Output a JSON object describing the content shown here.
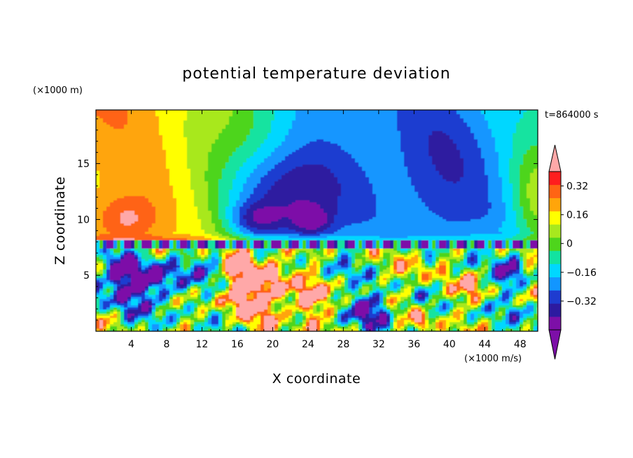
{
  "chart_data": {
    "type": "heatmap",
    "title": "potential temperature deviation",
    "xlabel": "X coordinate",
    "ylabel": "Z coordinate",
    "x_unit": "(×1000 m/s)",
    "y_unit": "(×1000 m)",
    "time_label": "t=864000 s",
    "xlim": [
      0,
      50
    ],
    "ylim": [
      0,
      19.8
    ],
    "x_ticks": [
      4,
      8,
      12,
      16,
      20,
      24,
      28,
      32,
      36,
      40,
      44,
      48
    ],
    "x_tick_labels": [
      "4",
      "8",
      "12",
      "16",
      "20",
      "24",
      "28",
      "32",
      "36",
      "40",
      "44",
      "48"
    ],
    "y_ticks": [
      5,
      10,
      15
    ],
    "y_tick_labels": [
      "5",
      "10",
      "15"
    ],
    "colorbar": {
      "levels": [
        -0.48,
        -0.4,
        -0.32,
        -0.24,
        -0.16,
        -0.08,
        0,
        0.08,
        0.16,
        0.24,
        0.32,
        0.4
      ],
      "tick_values": [
        0.32,
        0.16,
        0,
        -0.16,
        -0.32
      ],
      "tick_labels": [
        "0.32",
        "0.16",
        "0",
        "−0.16",
        "−0.32"
      ],
      "colors": [
        "#7d0fa8",
        "#2d1aa0",
        "#1e3cd0",
        "#1296ff",
        "#00d7ff",
        "#12e3a0",
        "#4ed51c",
        "#a8e81e",
        "#ffff00",
        "#ffa50a",
        "#ff6414",
        "#ff1e1e"
      ],
      "extend_low_color": "#7d0fa8",
      "extend_high_color": "#ffa8a8"
    }
  }
}
